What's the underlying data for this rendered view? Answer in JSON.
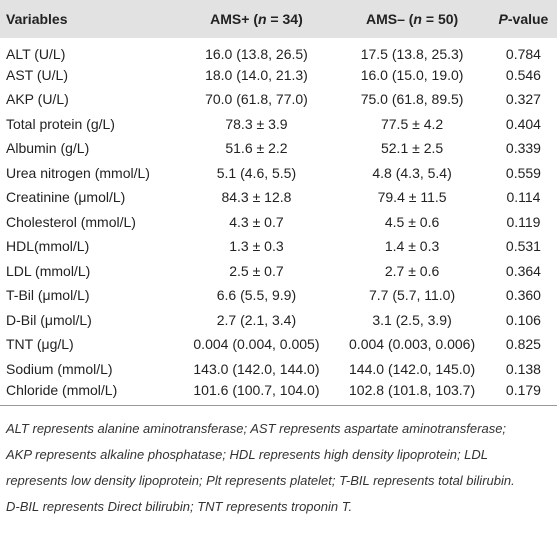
{
  "table": {
    "header": [
      [
        {
          "text": "Variables"
        }
      ],
      [
        {
          "text": "AMS+ ("
        },
        {
          "text": "n",
          "italic": true
        },
        {
          "text": " = 34)"
        }
      ],
      [
        {
          "text": "AMS– ("
        },
        {
          "text": "n",
          "italic": true
        },
        {
          "text": " = 50)"
        }
      ],
      [
        {
          "text": "P",
          "italic": true
        },
        {
          "text": "-value"
        }
      ]
    ],
    "rows": [
      [
        "ALT (U/L)",
        "16.0 (13.8, 26.5)",
        "17.5 (13.8, 25.3)",
        "0.784"
      ],
      [
        "AST (U/L)",
        "18.0 (14.0, 21.3)",
        "16.0 (15.0, 19.0)",
        "0.546"
      ],
      [
        "AKP (U/L)",
        "70.0 (61.8, 77.0)",
        "75.0 (61.8, 89.5)",
        "0.327"
      ],
      [
        "Total protein (g/L)",
        "78.3 ± 3.9",
        "77.5 ± 4.2",
        "0.404"
      ],
      [
        "Albumin (g/L)",
        "51.6 ± 2.2",
        "52.1 ± 2.5",
        "0.339"
      ],
      [
        "Urea nitrogen (mmol/L)",
        "5.1 (4.6, 5.5)",
        "4.8 (4.3, 5.4)",
        "0.559"
      ],
      [
        "Creatinine (μmol/L)",
        "84.3 ± 12.8",
        "79.4 ± 11.5",
        "0.114"
      ],
      [
        "Cholesterol (mmol/L)",
        "4.3 ± 0.7",
        "4.5 ± 0.6",
        "0.119"
      ],
      [
        "HDL(mmol/L)",
        "1.3 ± 0.3",
        "1.4 ± 0.3",
        "0.531"
      ],
      [
        "LDL (mmol/L)",
        "2.5 ± 0.7",
        "2.7 ± 0.6",
        "0.364"
      ],
      [
        "T-Bil (μmol/L)",
        "6.6 (5.5, 9.9)",
        "7.7 (5.7, 11.0)",
        "0.360"
      ],
      [
        "D-Bil (μmol/L)",
        "2.7 (2.1, 3.4)",
        "3.1 (2.5, 3.9)",
        "0.106"
      ],
      [
        "TNT (μg/L)",
        "0.004 (0.004, 0.005)",
        "0.004 (0.003, 0.006)",
        "0.825"
      ],
      [
        "Sodium (mmol/L)",
        "143.0 (142.0, 144.0)",
        "144.0 (142.0, 145.0)",
        "0.138"
      ],
      [
        "Chloride (mmol/L)",
        "101.6 (100.7, 104.0)",
        "102.8 (101.8, 103.7)",
        "0.179"
      ]
    ]
  },
  "notes": [
    "ALT represents alanine aminotransferase; AST represents aspartate aminotransferase;",
    "AKP represents alkaline phosphatase; HDL represents high density lipoprotein; LDL",
    "represents low density lipoprotein; Plt represents platelet; T-BIL represents total bilirubin.",
    "D-BIL represents Direct bilirubin; TNT represents troponin T."
  ]
}
